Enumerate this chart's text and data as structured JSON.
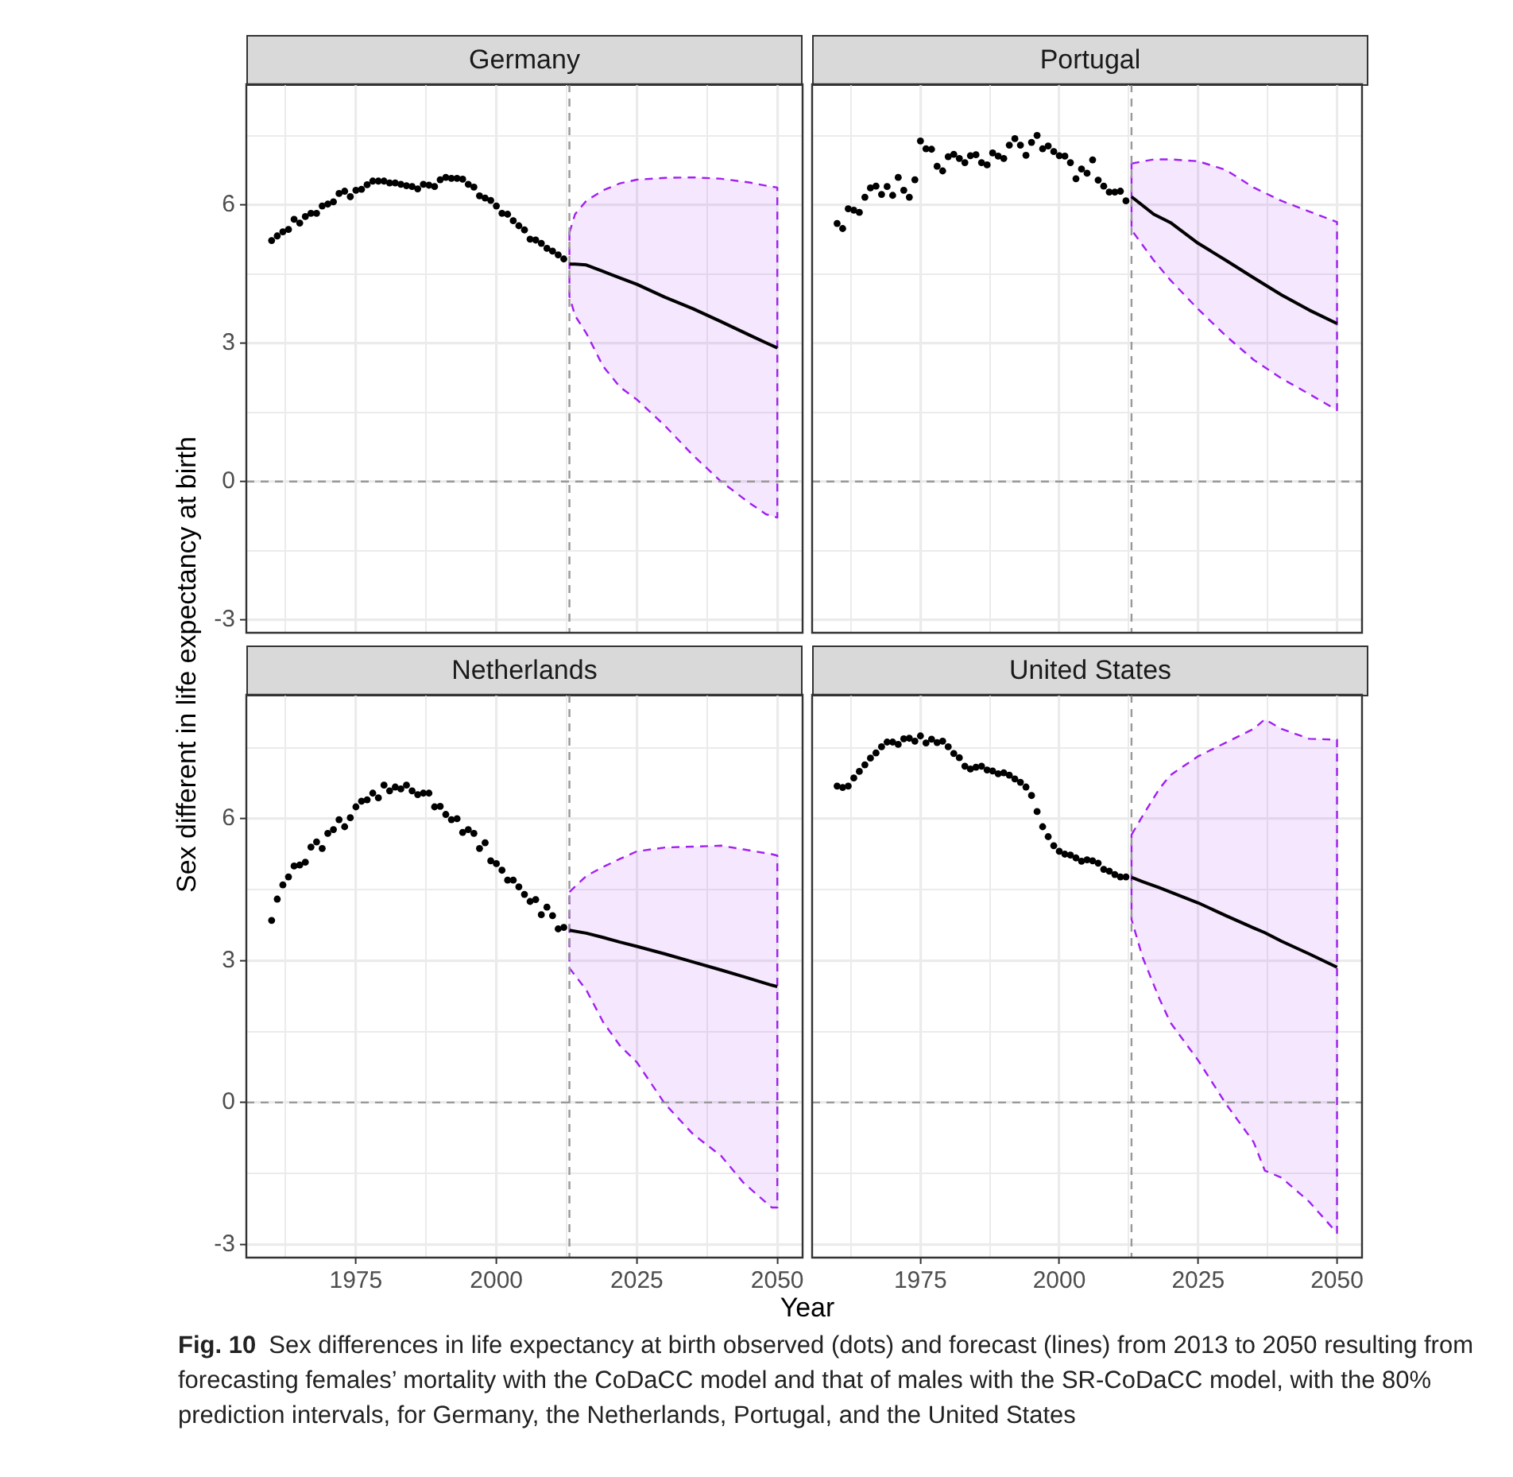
{
  "chart_data": [
    {
      "type": "scatter",
      "title": "Germany",
      "xlabel": "Year",
      "ylabel": "Sex different in life expectancy at birth",
      "annotations": [
        "Fig. 10",
        "Sex differences in life expectancy at birth observed (dots) and forecast (lines) from 2013 to 2050 resulting from forecasting females’ mortality with the CoDaCC model and that of males with the SR-CoDaCC model, with the 80% prediction intervals, for Germany, the Netherlands, Portugal, and the United States"
      ],
      "xlim": [
        1955.5,
        2054.5
      ],
      "ylim": [
        -3.28,
        8.62
      ],
      "xticks": [
        {
          "value": 1962.5,
          "label": null
        },
        1975,
        {
          "value": 1987.5,
          "label": null
        },
        2000,
        {
          "value": 2012.5,
          "label": null
        },
        2025,
        {
          "value": 2037.5,
          "label": null
        },
        2050
      ],
      "yticks": [
        -3,
        {
          "value": -1.5,
          "label": null
        },
        0,
        {
          "value": 1.5,
          "label": null
        },
        3,
        {
          "value": 4.5,
          "label": null
        },
        6,
        {
          "value": 7.5,
          "label": null
        }
      ],
      "grid": true,
      "tick_labels": "y",
      "ref_lines": [
        {
          "axis": "x",
          "value": 2013,
          "color": "#999999",
          "line_style": "dashed"
        },
        {
          "axis": "y",
          "value": 0,
          "color": "#999999",
          "line_style": "dashed"
        }
      ],
      "series": [
        {
          "type": "scatter",
          "color": "#000000",
          "marker": "circle",
          "x": [
            1960,
            1961,
            1962,
            1963,
            1964,
            1965,
            1966,
            1967,
            1968,
            1969,
            1970,
            1971,
            1972,
            1973,
            1974,
            1975,
            1976,
            1977,
            1978,
            1979,
            1980,
            1981,
            1982,
            1983,
            1984,
            1985,
            1986,
            1987,
            1988,
            1989,
            1990,
            1991,
            1992,
            1993,
            1994,
            1995,
            1996,
            1997,
            1998,
            1999,
            2000,
            2001,
            2002,
            2003,
            2004,
            2005,
            2006,
            2007,
            2008,
            2009,
            2010,
            2011,
            2012
          ],
          "values": [
            5.23,
            5.33,
            5.42,
            5.47,
            5.69,
            5.61,
            5.75,
            5.82,
            5.82,
            5.98,
            6.02,
            6.07,
            6.25,
            6.3,
            6.18,
            6.32,
            6.34,
            6.44,
            6.52,
            6.52,
            6.52,
            6.48,
            6.48,
            6.45,
            6.42,
            6.4,
            6.35,
            6.45,
            6.43,
            6.4,
            6.55,
            6.6,
            6.58,
            6.58,
            6.56,
            6.45,
            6.39,
            6.2,
            6.15,
            6.1,
            5.98,
            5.82,
            5.8,
            5.66,
            5.55,
            5.46,
            5.26,
            5.24,
            5.17,
            5.06,
            5.0,
            4.92,
            4.83
          ]
        },
        {
          "type": "line",
          "color": "#000000",
          "marker": "none",
          "x": [
            2013,
            2014,
            2016,
            2019,
            2022,
            2025,
            2030,
            2035,
            2040,
            2045,
            2048,
            2050
          ],
          "values": [
            4.72,
            4.72,
            4.7,
            4.56,
            4.42,
            4.28,
            4.0,
            3.75,
            3.47,
            3.18,
            3.01,
            2.9
          ],
          "upper": [
            5.4,
            5.8,
            6.09,
            6.32,
            6.47,
            6.55,
            6.59,
            6.6,
            6.57,
            6.49,
            6.42,
            6.38
          ],
          "lower": [
            4.02,
            3.6,
            3.22,
            2.5,
            2.05,
            1.78,
            1.21,
            0.57,
            0.0,
            -0.46,
            -0.71,
            -0.78
          ]
        }
      ]
    },
    {
      "type": "scatter",
      "title": "Portugal",
      "xlim": [
        1955.5,
        2054.5
      ],
      "ylim": [
        -3.28,
        8.62
      ],
      "xticks": [
        {
          "value": 1962.5,
          "label": null
        },
        1975,
        {
          "value": 1987.5,
          "label": null
        },
        2000,
        {
          "value": 2012.5,
          "label": null
        },
        2025,
        {
          "value": 2037.5,
          "label": null
        },
        2050
      ],
      "yticks": [
        -3,
        {
          "value": -1.5,
          "label": null
        },
        0,
        {
          "value": 1.5,
          "label": null
        },
        3,
        {
          "value": 4.5,
          "label": null
        },
        6,
        {
          "value": 7.5,
          "label": null
        }
      ],
      "grid": true,
      "tick_labels": false,
      "ref_lines": [
        {
          "axis": "x",
          "value": 2013,
          "color": "#999999",
          "line_style": "dashed"
        },
        {
          "axis": "y",
          "value": 0,
          "color": "#999999",
          "line_style": "dashed"
        }
      ],
      "series": [
        {
          "type": "scatter",
          "color": "#000000",
          "marker": "circle",
          "x": [
            1960,
            1961,
            1962,
            1963,
            1964,
            1965,
            1966,
            1967,
            1968,
            1969,
            1970,
            1971,
            1972,
            1973,
            1974,
            1975,
            1976,
            1977,
            1978,
            1979,
            1980,
            1981,
            1982,
            1983,
            1984,
            1985,
            1986,
            1987,
            1988,
            1989,
            1990,
            1991,
            1992,
            1993,
            1994,
            1995,
            1996,
            1997,
            1998,
            1999,
            2000,
            2001,
            2002,
            2003,
            2004,
            2005,
            2006,
            2007,
            2008,
            2009,
            2010,
            2011,
            2012
          ],
          "values": [
            5.6,
            5.49,
            5.92,
            5.89,
            5.84,
            6.17,
            6.37,
            6.41,
            6.23,
            6.4,
            6.21,
            6.6,
            6.32,
            6.17,
            6.55,
            7.39,
            7.22,
            7.21,
            6.84,
            6.74,
            7.05,
            7.1,
            7.01,
            6.92,
            7.07,
            7.09,
            6.92,
            6.87,
            7.13,
            7.06,
            7.01,
            7.3,
            7.44,
            7.3,
            7.08,
            7.36,
            7.51,
            7.22,
            7.28,
            7.16,
            7.07,
            7.06,
            6.92,
            6.57,
            6.78,
            6.69,
            6.98,
            6.54,
            6.41,
            6.28,
            6.28,
            6.3,
            6.09
          ]
        },
        {
          "type": "line",
          "color": "#000000",
          "marker": "none",
          "x": [
            2013,
            2017,
            2020,
            2025,
            2030,
            2035,
            2040,
            2045,
            2050
          ],
          "values": [
            6.18,
            5.8,
            5.62,
            5.17,
            4.8,
            4.42,
            4.05,
            3.72,
            3.43
          ],
          "upper": [
            6.9,
            6.99,
            6.99,
            6.95,
            6.76,
            6.38,
            6.09,
            5.86,
            5.63
          ],
          "lower": [
            5.46,
            4.8,
            4.37,
            3.74,
            3.16,
            2.64,
            2.24,
            1.9,
            1.55
          ]
        }
      ]
    },
    {
      "type": "scatter",
      "title": "Netherlands",
      "xlim": [
        1955.5,
        2054.5
      ],
      "ylim": [
        -3.28,
        8.62
      ],
      "xticks": [
        {
          "value": 1962.5,
          "label": null
        },
        1975,
        {
          "value": 1987.5,
          "label": null
        },
        2000,
        {
          "value": 2012.5,
          "label": null
        },
        2025,
        {
          "value": 2037.5,
          "label": null
        },
        2050
      ],
      "yticks": [
        -3,
        {
          "value": -1.5,
          "label": null
        },
        0,
        {
          "value": 1.5,
          "label": null
        },
        3,
        {
          "value": 4.5,
          "label": null
        },
        6,
        {
          "value": 7.5,
          "label": null
        }
      ],
      "grid": true,
      "ref_lines": [
        {
          "axis": "x",
          "value": 2013,
          "color": "#999999",
          "line_style": "dashed"
        },
        {
          "axis": "y",
          "value": 0,
          "color": "#999999",
          "line_style": "dashed"
        }
      ],
      "series": [
        {
          "type": "scatter",
          "color": "#000000",
          "marker": "circle",
          "x": [
            1960,
            1961,
            1962,
            1963,
            1964,
            1965,
            1966,
            1967,
            1968,
            1969,
            1970,
            1971,
            1972,
            1973,
            1974,
            1975,
            1976,
            1977,
            1978,
            1979,
            1980,
            1981,
            1982,
            1983,
            1984,
            1985,
            1986,
            1987,
            1988,
            1989,
            1990,
            1991,
            1992,
            1993,
            1994,
            1995,
            1996,
            1997,
            1998,
            1999,
            2000,
            2001,
            2002,
            2003,
            2004,
            2005,
            2006,
            2007,
            2008,
            2009,
            2010,
            2011,
            2012
          ],
          "values": [
            3.85,
            4.3,
            4.6,
            4.77,
            5.0,
            5.02,
            5.08,
            5.4,
            5.51,
            5.37,
            5.69,
            5.77,
            5.98,
            5.83,
            6.02,
            6.25,
            6.37,
            6.4,
            6.54,
            6.44,
            6.71,
            6.59,
            6.67,
            6.63,
            6.71,
            6.59,
            6.51,
            6.54,
            6.54,
            6.25,
            6.26,
            6.09,
            5.98,
            6.0,
            5.71,
            5.77,
            5.69,
            5.37,
            5.49,
            5.11,
            5.05,
            4.91,
            4.7,
            4.7,
            4.56,
            4.4,
            4.25,
            4.29,
            3.97,
            4.13,
            3.95,
            3.67,
            3.7
          ]
        },
        {
          "type": "line",
          "color": "#000000",
          "marker": "none",
          "x": [
            2013,
            2016,
            2019,
            2022,
            2025,
            2030,
            2035,
            2040,
            2044,
            2049,
            2050
          ],
          "values": [
            3.64,
            3.58,
            3.49,
            3.39,
            3.3,
            3.14,
            2.97,
            2.8,
            2.66,
            2.48,
            2.45
          ],
          "upper": [
            4.45,
            4.79,
            4.98,
            5.15,
            5.31,
            5.39,
            5.41,
            5.43,
            5.35,
            5.25,
            5.22
          ],
          "lower": [
            2.84,
            2.38,
            1.7,
            1.2,
            0.85,
            -0.03,
            -0.67,
            -1.13,
            -1.7,
            -2.22,
            -2.22
          ]
        }
      ]
    },
    {
      "type": "scatter",
      "title": "United States",
      "xlim": [
        1955.5,
        2054.5
      ],
      "ylim": [
        -3.28,
        8.62
      ],
      "xticks": [
        {
          "value": 1962.5,
          "label": null
        },
        1975,
        {
          "value": 1987.5,
          "label": null
        },
        2000,
        {
          "value": 2012.5,
          "label": null
        },
        2025,
        {
          "value": 2037.5,
          "label": null
        },
        2050
      ],
      "yticks": [
        -3,
        {
          "value": -1.5,
          "label": null
        },
        0,
        {
          "value": 1.5,
          "label": null
        },
        3,
        {
          "value": 4.5,
          "label": null
        },
        6,
        {
          "value": 7.5,
          "label": null
        }
      ],
      "grid": true,
      "tick_labels": "x",
      "ref_lines": [
        {
          "axis": "x",
          "value": 2013,
          "color": "#999999",
          "line_style": "dashed"
        },
        {
          "axis": "y",
          "value": 0,
          "color": "#999999",
          "line_style": "dashed"
        }
      ],
      "series": [
        {
          "type": "scatter",
          "color": "#000000",
          "marker": "circle",
          "x": [
            1960,
            1961,
            1962,
            1963,
            1964,
            1965,
            1966,
            1967,
            1968,
            1969,
            1970,
            1971,
            1972,
            1973,
            1974,
            1975,
            1976,
            1977,
            1978,
            1979,
            1980,
            1981,
            1982,
            1983,
            1984,
            1985,
            1986,
            1987,
            1988,
            1989,
            1990,
            1991,
            1992,
            1993,
            1994,
            1995,
            1996,
            1997,
            1998,
            1999,
            2000,
            2001,
            2002,
            2003,
            2004,
            2005,
            2006,
            2007,
            2008,
            2009,
            2010,
            2011,
            2012
          ],
          "values": [
            6.69,
            6.66,
            6.69,
            6.86,
            7.0,
            7.14,
            7.28,
            7.39,
            7.52,
            7.62,
            7.62,
            7.57,
            7.69,
            7.7,
            7.64,
            7.75,
            7.6,
            7.68,
            7.61,
            7.64,
            7.52,
            7.38,
            7.29,
            7.11,
            7.05,
            7.09,
            7.11,
            7.03,
            7.01,
            6.95,
            6.97,
            6.92,
            6.84,
            6.77,
            6.67,
            6.49,
            6.15,
            5.83,
            5.62,
            5.43,
            5.31,
            5.25,
            5.23,
            5.17,
            5.1,
            5.13,
            5.11,
            5.06,
            4.93,
            4.89,
            4.82,
            4.77,
            4.77
          ]
        },
        {
          "type": "line",
          "color": "#000000",
          "marker": "none",
          "x": [
            2013,
            2015,
            2018,
            2020,
            2025,
            2030,
            2035,
            2037,
            2040,
            2045,
            2050
          ],
          "values": [
            4.76,
            4.67,
            4.54,
            4.45,
            4.22,
            3.95,
            3.69,
            3.59,
            3.41,
            3.14,
            2.86
          ],
          "upper": [
            5.66,
            6.06,
            6.63,
            6.92,
            7.32,
            7.61,
            7.9,
            8.1,
            7.9,
            7.69,
            7.67
          ],
          "lower": [
            3.87,
            3.07,
            2.2,
            1.69,
            0.89,
            -0.03,
            -0.84,
            -1.44,
            -1.59,
            -2.1,
            -2.76
          ]
        }
      ]
    }
  ]
}
